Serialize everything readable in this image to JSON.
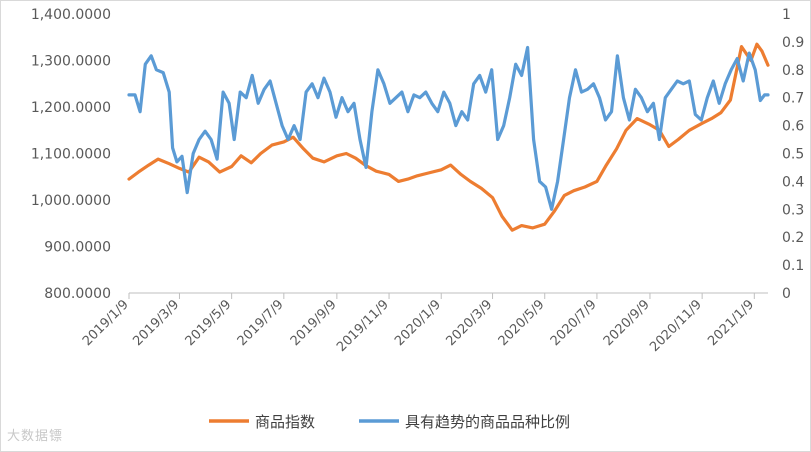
{
  "chart_data": {
    "type": "line",
    "title": "",
    "y_left": {
      "min": 800,
      "max": 1400,
      "step": 100,
      "tick_labels": [
        "800.0000",
        "900.0000",
        "1,000.0000",
        "1,100.0000",
        "1,200.0000",
        "1,300.0000",
        "1,400.0000"
      ]
    },
    "y_right": {
      "min": 0,
      "max": 1,
      "step": 0.1,
      "tick_labels": [
        "0",
        "0.1",
        "0.2",
        "0.3",
        "0.4",
        "0.5",
        "0.6",
        "0.7",
        "0.8",
        "0.9",
        "1"
      ]
    },
    "x_axis": {
      "start": "2019-01-09",
      "end": "2021-01-25",
      "tick_labels": [
        "2019/1/9",
        "2019/3/9",
        "2019/5/9",
        "2019/7/9",
        "2019/9/9",
        "2019/11/9",
        "2020/1/9",
        "2020/3/9",
        "2020/5/9",
        "2020/7/9",
        "2020/9/9",
        "2020/11/9",
        "2021/1/9"
      ],
      "tick_dates": [
        "2019-01-09",
        "2019-03-09",
        "2019-05-09",
        "2019-07-09",
        "2019-09-09",
        "2019-11-09",
        "2020-01-09",
        "2020-03-09",
        "2020-05-09",
        "2020-07-09",
        "2020-09-09",
        "2020-11-09",
        "2021-01-09"
      ]
    },
    "grid": false,
    "legend_position": "bottom",
    "series": [
      {
        "name": "商品指数",
        "axis": "left",
        "color": "#ED7D31",
        "points": [
          [
            "2019-01-09",
            1045
          ],
          [
            "2019-01-20",
            1060
          ],
          [
            "2019-02-01",
            1075
          ],
          [
            "2019-02-12",
            1088
          ],
          [
            "2019-02-25",
            1078
          ],
          [
            "2019-03-09",
            1068
          ],
          [
            "2019-03-20",
            1060
          ],
          [
            "2019-04-01",
            1092
          ],
          [
            "2019-04-12",
            1082
          ],
          [
            "2019-04-25",
            1060
          ],
          [
            "2019-05-09",
            1072
          ],
          [
            "2019-05-20",
            1095
          ],
          [
            "2019-06-01",
            1080
          ],
          [
            "2019-06-12",
            1100
          ],
          [
            "2019-06-25",
            1118
          ],
          [
            "2019-07-09",
            1125
          ],
          [
            "2019-07-20",
            1135
          ],
          [
            "2019-08-01",
            1110
          ],
          [
            "2019-08-12",
            1090
          ],
          [
            "2019-08-25",
            1082
          ],
          [
            "2019-09-09",
            1095
          ],
          [
            "2019-09-20",
            1100
          ],
          [
            "2019-10-01",
            1090
          ],
          [
            "2019-10-12",
            1075
          ],
          [
            "2019-10-25",
            1062
          ],
          [
            "2019-11-09",
            1055
          ],
          [
            "2019-11-20",
            1040
          ],
          [
            "2019-12-01",
            1045
          ],
          [
            "2019-12-12",
            1052
          ],
          [
            "2019-12-25",
            1058
          ],
          [
            "2020-01-09",
            1065
          ],
          [
            "2020-01-20",
            1075
          ],
          [
            "2020-02-01",
            1055
          ],
          [
            "2020-02-12",
            1040
          ],
          [
            "2020-02-25",
            1025
          ],
          [
            "2020-03-09",
            1005
          ],
          [
            "2020-03-20",
            965
          ],
          [
            "2020-04-01",
            935
          ],
          [
            "2020-04-12",
            945
          ],
          [
            "2020-04-25",
            940
          ],
          [
            "2020-05-09",
            948
          ],
          [
            "2020-05-20",
            975
          ],
          [
            "2020-06-01",
            1010
          ],
          [
            "2020-06-12",
            1020
          ],
          [
            "2020-06-25",
            1028
          ],
          [
            "2020-07-09",
            1040
          ],
          [
            "2020-07-20",
            1075
          ],
          [
            "2020-08-01",
            1110
          ],
          [
            "2020-08-12",
            1150
          ],
          [
            "2020-08-25",
            1175
          ],
          [
            "2020-09-09",
            1162
          ],
          [
            "2020-09-20",
            1150
          ],
          [
            "2020-10-01",
            1115
          ],
          [
            "2020-10-12",
            1130
          ],
          [
            "2020-10-25",
            1150
          ],
          [
            "2020-11-09",
            1165
          ],
          [
            "2020-11-20",
            1175
          ],
          [
            "2020-12-01",
            1188
          ],
          [
            "2020-12-12",
            1215
          ],
          [
            "2020-12-25",
            1330
          ],
          [
            "2021-01-05",
            1300
          ],
          [
            "2021-01-12",
            1335
          ],
          [
            "2021-01-18",
            1320
          ],
          [
            "2021-01-25",
            1290
          ]
        ]
      },
      {
        "name": "具有趋势的商品品种比例",
        "axis": "right",
        "color": "#5B9BD5",
        "points": [
          [
            "2019-01-09",
            0.71
          ],
          [
            "2019-01-16",
            0.71
          ],
          [
            "2019-01-22",
            0.65
          ],
          [
            "2019-01-28",
            0.82
          ],
          [
            "2019-02-04",
            0.85
          ],
          [
            "2019-02-10",
            0.8
          ],
          [
            "2019-02-18",
            0.79
          ],
          [
            "2019-02-25",
            0.72
          ],
          [
            "2019-03-01",
            0.52
          ],
          [
            "2019-03-06",
            0.47
          ],
          [
            "2019-03-12",
            0.49
          ],
          [
            "2019-03-18",
            0.36
          ],
          [
            "2019-03-25",
            0.5
          ],
          [
            "2019-04-01",
            0.55
          ],
          [
            "2019-04-08",
            0.58
          ],
          [
            "2019-04-15",
            0.55
          ],
          [
            "2019-04-22",
            0.48
          ],
          [
            "2019-04-29",
            0.72
          ],
          [
            "2019-05-06",
            0.68
          ],
          [
            "2019-05-12",
            0.55
          ],
          [
            "2019-05-19",
            0.72
          ],
          [
            "2019-05-26",
            0.7
          ],
          [
            "2019-06-02",
            0.78
          ],
          [
            "2019-06-09",
            0.68
          ],
          [
            "2019-06-16",
            0.73
          ],
          [
            "2019-06-23",
            0.76
          ],
          [
            "2019-06-30",
            0.68
          ],
          [
            "2019-07-07",
            0.6
          ],
          [
            "2019-07-14",
            0.55
          ],
          [
            "2019-07-21",
            0.6
          ],
          [
            "2019-07-28",
            0.55
          ],
          [
            "2019-08-04",
            0.72
          ],
          [
            "2019-08-11",
            0.75
          ],
          [
            "2019-08-18",
            0.7
          ],
          [
            "2019-08-25",
            0.77
          ],
          [
            "2019-09-01",
            0.72
          ],
          [
            "2019-09-08",
            0.63
          ],
          [
            "2019-09-15",
            0.7
          ],
          [
            "2019-09-22",
            0.65
          ],
          [
            "2019-09-29",
            0.68
          ],
          [
            "2019-10-06",
            0.55
          ],
          [
            "2019-10-13",
            0.45
          ],
          [
            "2019-10-20",
            0.65
          ],
          [
            "2019-10-27",
            0.8
          ],
          [
            "2019-11-03",
            0.75
          ],
          [
            "2019-11-10",
            0.68
          ],
          [
            "2019-11-17",
            0.7
          ],
          [
            "2019-11-24",
            0.72
          ],
          [
            "2019-12-01",
            0.65
          ],
          [
            "2019-12-08",
            0.71
          ],
          [
            "2019-12-15",
            0.7
          ],
          [
            "2019-12-22",
            0.72
          ],
          [
            "2019-12-29",
            0.68
          ],
          [
            "2020-01-05",
            0.65
          ],
          [
            "2020-01-12",
            0.72
          ],
          [
            "2020-01-19",
            0.68
          ],
          [
            "2020-01-26",
            0.6
          ],
          [
            "2020-02-02",
            0.65
          ],
          [
            "2020-02-09",
            0.62
          ],
          [
            "2020-02-16",
            0.75
          ],
          [
            "2020-02-23",
            0.78
          ],
          [
            "2020-03-01",
            0.72
          ],
          [
            "2020-03-08",
            0.8
          ],
          [
            "2020-03-15",
            0.55
          ],
          [
            "2020-03-22",
            0.6
          ],
          [
            "2020-03-29",
            0.7
          ],
          [
            "2020-04-05",
            0.82
          ],
          [
            "2020-04-12",
            0.78
          ],
          [
            "2020-04-19",
            0.88
          ],
          [
            "2020-04-26",
            0.55
          ],
          [
            "2020-05-03",
            0.4
          ],
          [
            "2020-05-10",
            0.38
          ],
          [
            "2020-05-17",
            0.3
          ],
          [
            "2020-05-24",
            0.4
          ],
          [
            "2020-05-31",
            0.55
          ],
          [
            "2020-06-07",
            0.7
          ],
          [
            "2020-06-14",
            0.8
          ],
          [
            "2020-06-21",
            0.72
          ],
          [
            "2020-06-28",
            0.73
          ],
          [
            "2020-07-05",
            0.75
          ],
          [
            "2020-07-12",
            0.7
          ],
          [
            "2020-07-19",
            0.62
          ],
          [
            "2020-07-26",
            0.65
          ],
          [
            "2020-08-02",
            0.85
          ],
          [
            "2020-08-09",
            0.7
          ],
          [
            "2020-08-16",
            0.62
          ],
          [
            "2020-08-23",
            0.73
          ],
          [
            "2020-08-30",
            0.7
          ],
          [
            "2020-09-06",
            0.65
          ],
          [
            "2020-09-13",
            0.68
          ],
          [
            "2020-09-20",
            0.55
          ],
          [
            "2020-09-27",
            0.7
          ],
          [
            "2020-10-04",
            0.73
          ],
          [
            "2020-10-11",
            0.76
          ],
          [
            "2020-10-18",
            0.75
          ],
          [
            "2020-10-25",
            0.76
          ],
          [
            "2020-11-01",
            0.64
          ],
          [
            "2020-11-08",
            0.62
          ],
          [
            "2020-11-15",
            0.7
          ],
          [
            "2020-11-22",
            0.76
          ],
          [
            "2020-11-29",
            0.68
          ],
          [
            "2020-12-06",
            0.75
          ],
          [
            "2020-12-13",
            0.8
          ],
          [
            "2020-12-20",
            0.84
          ],
          [
            "2020-12-27",
            0.76
          ],
          [
            "2021-01-03",
            0.86
          ],
          [
            "2021-01-10",
            0.8
          ],
          [
            "2021-01-16",
            0.69
          ],
          [
            "2021-01-21",
            0.71
          ],
          [
            "2021-01-25",
            0.71
          ]
        ]
      }
    ]
  },
  "legend": [
    {
      "label": "商品指数",
      "color": "#ED7D31"
    },
    {
      "label": "具有趋势的商品品种比例",
      "color": "#5B9BD5"
    }
  ],
  "watermark": "大数据镖"
}
